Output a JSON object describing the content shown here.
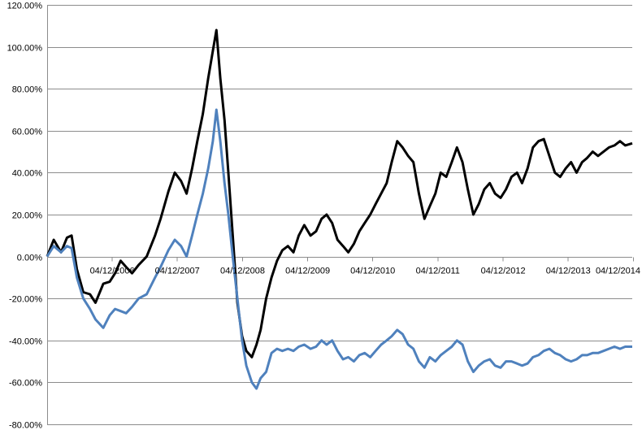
{
  "chart_data": {
    "type": "line",
    "ylim": [
      -0.8,
      1.2
    ],
    "y_ticks": [
      {
        "value": 1.2,
        "label": "120.00%"
      },
      {
        "value": 1.0,
        "label": "100.00%"
      },
      {
        "value": 0.8,
        "label": "80.00%"
      },
      {
        "value": 0.6,
        "label": "60.00%"
      },
      {
        "value": 0.4,
        "label": "40.00%"
      },
      {
        "value": 0.2,
        "label": "20.00%"
      },
      {
        "value": 0.0,
        "label": "0.00%"
      },
      {
        "value": -0.2,
        "label": "-20.00%"
      },
      {
        "value": -0.4,
        "label": "-40.00%"
      },
      {
        "value": -0.6,
        "label": "-60.00%"
      },
      {
        "value": -0.8,
        "label": "-80.00%"
      }
    ],
    "xlim": [
      "2005-12-04",
      "2014-11-28"
    ],
    "x_ticks": [
      {
        "value": "2006-12-04",
        "label": "04/12/2006"
      },
      {
        "value": "2007-12-04",
        "label": "04/12/2007"
      },
      {
        "value": "2008-12-04",
        "label": "04/12/2008"
      },
      {
        "value": "2009-12-04",
        "label": "04/12/2009"
      },
      {
        "value": "2010-12-04",
        "label": "04/12/2010"
      },
      {
        "value": "2011-12-04",
        "label": "04/12/2011"
      },
      {
        "value": "2012-12-04",
        "label": "04/12/2012"
      },
      {
        "value": "2013-12-04",
        "label": "04/12/2013"
      },
      {
        "value": "2014-12-04",
        "label": "04/12/2014"
      }
    ],
    "grid": "horizontal",
    "legend": "none",
    "series": [
      {
        "color": "#000000",
        "points": [
          [
            "2005-12-04",
            0.0
          ],
          [
            "2006-01-10",
            0.08
          ],
          [
            "2006-02-20",
            0.02
          ],
          [
            "2006-03-25",
            0.09
          ],
          [
            "2006-04-20",
            0.1
          ],
          [
            "2006-05-20",
            -0.06
          ],
          [
            "2006-06-25",
            -0.17
          ],
          [
            "2006-08-01",
            -0.18
          ],
          [
            "2006-09-01",
            -0.22
          ],
          [
            "2006-10-15",
            -0.13
          ],
          [
            "2006-11-20",
            -0.12
          ],
          [
            "2006-12-20",
            -0.08
          ],
          [
            "2007-01-20",
            -0.02
          ],
          [
            "2007-02-20",
            -0.05
          ],
          [
            "2007-03-25",
            -0.08
          ],
          [
            "2007-05-01",
            -0.04
          ],
          [
            "2007-06-15",
            0.0
          ],
          [
            "2007-08-01",
            0.1
          ],
          [
            "2007-09-01",
            0.18
          ],
          [
            "2007-10-15",
            0.31
          ],
          [
            "2007-11-20",
            0.4
          ],
          [
            "2007-12-25",
            0.36
          ],
          [
            "2008-01-25",
            0.3
          ],
          [
            "2008-02-25",
            0.42
          ],
          [
            "2008-03-25",
            0.55
          ],
          [
            "2008-04-25",
            0.68
          ],
          [
            "2008-05-25",
            0.85
          ],
          [
            "2008-06-20",
            0.98
          ],
          [
            "2008-07-10",
            1.08
          ],
          [
            "2008-08-01",
            0.85
          ],
          [
            "2008-08-25",
            0.65
          ],
          [
            "2008-09-15",
            0.4
          ],
          [
            "2008-10-10",
            0.1
          ],
          [
            "2008-11-05",
            -0.22
          ],
          [
            "2008-12-01",
            -0.38
          ],
          [
            "2008-12-25",
            -0.45
          ],
          [
            "2009-01-25",
            -0.48
          ],
          [
            "2009-02-20",
            -0.42
          ],
          [
            "2009-03-15",
            -0.35
          ],
          [
            "2009-04-15",
            -0.2
          ],
          [
            "2009-05-15",
            -0.1
          ],
          [
            "2009-06-15",
            -0.02
          ],
          [
            "2009-07-15",
            0.03
          ],
          [
            "2009-08-15",
            0.05
          ],
          [
            "2009-09-15",
            0.02
          ],
          [
            "2009-10-15",
            0.1
          ],
          [
            "2009-11-15",
            0.15
          ],
          [
            "2009-12-20",
            0.1
          ],
          [
            "2010-01-20",
            0.12
          ],
          [
            "2010-02-20",
            0.18
          ],
          [
            "2010-03-20",
            0.2
          ],
          [
            "2010-04-20",
            0.16
          ],
          [
            "2010-05-20",
            0.08
          ],
          [
            "2010-06-20",
            0.05
          ],
          [
            "2010-07-20",
            0.02
          ],
          [
            "2010-08-20",
            0.06
          ],
          [
            "2010-09-20",
            0.12
          ],
          [
            "2010-10-20",
            0.16
          ],
          [
            "2010-11-20",
            0.2
          ],
          [
            "2010-12-20",
            0.25
          ],
          [
            "2011-01-20",
            0.3
          ],
          [
            "2011-02-20",
            0.35
          ],
          [
            "2011-03-20",
            0.45
          ],
          [
            "2011-04-20",
            0.55
          ],
          [
            "2011-05-20",
            0.52
          ],
          [
            "2011-06-20",
            0.48
          ],
          [
            "2011-07-20",
            0.45
          ],
          [
            "2011-08-20",
            0.3
          ],
          [
            "2011-09-20",
            0.18
          ],
          [
            "2011-10-20",
            0.24
          ],
          [
            "2011-11-20",
            0.3
          ],
          [
            "2011-12-20",
            0.4
          ],
          [
            "2012-01-20",
            0.38
          ],
          [
            "2012-02-20",
            0.45
          ],
          [
            "2012-03-20",
            0.52
          ],
          [
            "2012-04-20",
            0.45
          ],
          [
            "2012-05-20",
            0.32
          ],
          [
            "2012-06-20",
            0.2
          ],
          [
            "2012-07-20",
            0.25
          ],
          [
            "2012-08-20",
            0.32
          ],
          [
            "2012-09-20",
            0.35
          ],
          [
            "2012-10-20",
            0.3
          ],
          [
            "2012-11-20",
            0.28
          ],
          [
            "2012-12-20",
            0.32
          ],
          [
            "2013-01-20",
            0.38
          ],
          [
            "2013-02-20",
            0.4
          ],
          [
            "2013-03-20",
            0.35
          ],
          [
            "2013-04-20",
            0.42
          ],
          [
            "2013-05-20",
            0.52
          ],
          [
            "2013-06-20",
            0.55
          ],
          [
            "2013-07-20",
            0.56
          ],
          [
            "2013-08-20",
            0.48
          ],
          [
            "2013-09-20",
            0.4
          ],
          [
            "2013-10-20",
            0.38
          ],
          [
            "2013-11-20",
            0.42
          ],
          [
            "2013-12-20",
            0.45
          ],
          [
            "2014-01-20",
            0.4
          ],
          [
            "2014-02-20",
            0.45
          ],
          [
            "2014-03-20",
            0.47
          ],
          [
            "2014-04-20",
            0.5
          ],
          [
            "2014-05-20",
            0.48
          ],
          [
            "2014-06-20",
            0.5
          ],
          [
            "2014-07-20",
            0.52
          ],
          [
            "2014-08-20",
            0.53
          ],
          [
            "2014-09-20",
            0.55
          ],
          [
            "2014-10-20",
            0.53
          ],
          [
            "2014-11-28",
            0.54
          ]
        ]
      },
      {
        "color": "#4f81bd",
        "points": [
          [
            "2005-12-04",
            0.0
          ],
          [
            "2006-01-10",
            0.05
          ],
          [
            "2006-02-20",
            0.02
          ],
          [
            "2006-03-25",
            0.05
          ],
          [
            "2006-04-20",
            0.04
          ],
          [
            "2006-05-20",
            -0.1
          ],
          [
            "2006-06-25",
            -0.2
          ],
          [
            "2006-08-01",
            -0.25
          ],
          [
            "2006-09-01",
            -0.3
          ],
          [
            "2006-10-15",
            -0.34
          ],
          [
            "2006-11-20",
            -0.28
          ],
          [
            "2006-12-20",
            -0.25
          ],
          [
            "2007-01-20",
            -0.26
          ],
          [
            "2007-02-20",
            -0.27
          ],
          [
            "2007-03-25",
            -0.24
          ],
          [
            "2007-05-01",
            -0.2
          ],
          [
            "2007-06-15",
            -0.18
          ],
          [
            "2007-08-01",
            -0.1
          ],
          [
            "2007-09-01",
            -0.05
          ],
          [
            "2007-10-15",
            0.03
          ],
          [
            "2007-11-20",
            0.08
          ],
          [
            "2007-12-25",
            0.05
          ],
          [
            "2008-01-25",
            0.0
          ],
          [
            "2008-02-25",
            0.1
          ],
          [
            "2008-03-25",
            0.2
          ],
          [
            "2008-04-25",
            0.3
          ],
          [
            "2008-05-25",
            0.42
          ],
          [
            "2008-06-20",
            0.55
          ],
          [
            "2008-07-10",
            0.7
          ],
          [
            "2008-08-01",
            0.55
          ],
          [
            "2008-08-25",
            0.35
          ],
          [
            "2008-09-15",
            0.2
          ],
          [
            "2008-10-10",
            0.0
          ],
          [
            "2008-11-05",
            -0.2
          ],
          [
            "2008-12-01",
            -0.4
          ],
          [
            "2008-12-25",
            -0.52
          ],
          [
            "2009-01-25",
            -0.6
          ],
          [
            "2009-02-20",
            -0.63
          ],
          [
            "2009-03-15",
            -0.58
          ],
          [
            "2009-04-15",
            -0.55
          ],
          [
            "2009-05-15",
            -0.46
          ],
          [
            "2009-06-15",
            -0.44
          ],
          [
            "2009-07-15",
            -0.45
          ],
          [
            "2009-08-15",
            -0.44
          ],
          [
            "2009-09-15",
            -0.45
          ],
          [
            "2009-10-15",
            -0.43
          ],
          [
            "2009-11-15",
            -0.42
          ],
          [
            "2009-12-20",
            -0.44
          ],
          [
            "2010-01-20",
            -0.43
          ],
          [
            "2010-02-20",
            -0.4
          ],
          [
            "2010-03-20",
            -0.42
          ],
          [
            "2010-04-20",
            -0.4
          ],
          [
            "2010-05-20",
            -0.45
          ],
          [
            "2010-06-20",
            -0.49
          ],
          [
            "2010-07-20",
            -0.48
          ],
          [
            "2010-08-20",
            -0.5
          ],
          [
            "2010-09-20",
            -0.47
          ],
          [
            "2010-10-20",
            -0.46
          ],
          [
            "2010-11-20",
            -0.48
          ],
          [
            "2010-12-20",
            -0.45
          ],
          [
            "2011-01-20",
            -0.42
          ],
          [
            "2011-02-20",
            -0.4
          ],
          [
            "2011-03-20",
            -0.38
          ],
          [
            "2011-04-20",
            -0.35
          ],
          [
            "2011-05-20",
            -0.37
          ],
          [
            "2011-06-20",
            -0.42
          ],
          [
            "2011-07-20",
            -0.44
          ],
          [
            "2011-08-20",
            -0.5
          ],
          [
            "2011-09-20",
            -0.53
          ],
          [
            "2011-10-20",
            -0.48
          ],
          [
            "2011-11-20",
            -0.5
          ],
          [
            "2011-12-20",
            -0.47
          ],
          [
            "2012-01-20",
            -0.45
          ],
          [
            "2012-02-20",
            -0.43
          ],
          [
            "2012-03-20",
            -0.4
          ],
          [
            "2012-04-20",
            -0.42
          ],
          [
            "2012-05-20",
            -0.5
          ],
          [
            "2012-06-20",
            -0.55
          ],
          [
            "2012-07-20",
            -0.52
          ],
          [
            "2012-08-20",
            -0.5
          ],
          [
            "2012-09-20",
            -0.49
          ],
          [
            "2012-10-20",
            -0.52
          ],
          [
            "2012-11-20",
            -0.53
          ],
          [
            "2012-12-20",
            -0.5
          ],
          [
            "2013-01-20",
            -0.5
          ],
          [
            "2013-02-20",
            -0.51
          ],
          [
            "2013-03-20",
            -0.52
          ],
          [
            "2013-04-20",
            -0.51
          ],
          [
            "2013-05-20",
            -0.48
          ],
          [
            "2013-06-20",
            -0.47
          ],
          [
            "2013-07-20",
            -0.45
          ],
          [
            "2013-08-20",
            -0.44
          ],
          [
            "2013-09-20",
            -0.46
          ],
          [
            "2013-10-20",
            -0.47
          ],
          [
            "2013-11-20",
            -0.49
          ],
          [
            "2013-12-20",
            -0.5
          ],
          [
            "2014-01-20",
            -0.49
          ],
          [
            "2014-02-20",
            -0.47
          ],
          [
            "2014-03-20",
            -0.47
          ],
          [
            "2014-04-20",
            -0.46
          ],
          [
            "2014-05-20",
            -0.46
          ],
          [
            "2014-06-20",
            -0.45
          ],
          [
            "2014-07-20",
            -0.44
          ],
          [
            "2014-08-20",
            -0.43
          ],
          [
            "2014-09-20",
            -0.44
          ],
          [
            "2014-10-20",
            -0.43
          ],
          [
            "2014-11-28",
            -0.43
          ]
        ]
      }
    ]
  }
}
